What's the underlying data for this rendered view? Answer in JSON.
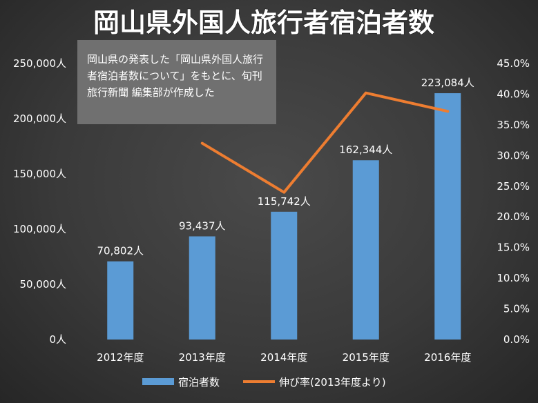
{
  "note": "岡山県の発表した「岡山県外国人旅行者宿泊者数について」をもとに、旬刊旅行新聞 編集部が作成した",
  "chart_data": {
    "type": "bar",
    "title": "岡山県外国人旅行者宿泊者数",
    "categories": [
      "2012年度",
      "2013年度",
      "2014年度",
      "2015年度",
      "2016年度"
    ],
    "series": [
      {
        "name": "宿泊者数",
        "type": "bar",
        "axis": "left",
        "color": "#5b9bd5",
        "values": [
          70802,
          93437,
          115742,
          162344,
          223084
        ],
        "labels": [
          "70,802人",
          "93,437人",
          "115,742人",
          "162,344人",
          "223,084人"
        ]
      },
      {
        "name": "伸び率(2013年度より)",
        "type": "line",
        "axis": "right",
        "color": "#ed7d31",
        "values": [
          null,
          32.0,
          24.0,
          40.2,
          37.2
        ]
      }
    ],
    "y_left": {
      "ylim": [
        0,
        250000
      ],
      "ticks": [
        0,
        50000,
        100000,
        150000,
        200000,
        250000
      ],
      "tick_labels": [
        "0人",
        "50,000人",
        "100,000人",
        "150,000人",
        "200,000人",
        "250,000人"
      ]
    },
    "y_right": {
      "ylim": [
        0,
        45
      ],
      "ticks": [
        0,
        5,
        10,
        15,
        20,
        25,
        30,
        35,
        40,
        45
      ],
      "tick_labels": [
        "0.0%",
        "5.0%",
        "10.0%",
        "15.0%",
        "20.0%",
        "25.0%",
        "30.0%",
        "35.0%",
        "40.0%",
        "45.0%"
      ]
    },
    "grid": false,
    "legend_position": "bottom"
  }
}
